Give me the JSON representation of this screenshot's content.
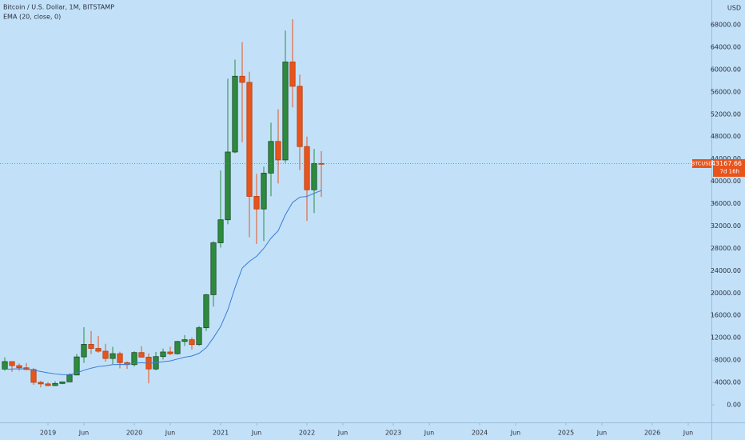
{
  "chart_data": {
    "type": "candlestick",
    "title": "Bitcoin / U.S. Dollar, 1M, BITSTAMP",
    "y_unit": "USD",
    "x": [
      "2018-07",
      "2018-08",
      "2018-09",
      "2018-10",
      "2018-11",
      "2018-12",
      "2019-01",
      "2019-02",
      "2019-03",
      "2019-04",
      "2019-05",
      "2019-06",
      "2019-07",
      "2019-08",
      "2019-09",
      "2019-10",
      "2019-11",
      "2019-12",
      "2020-01",
      "2020-02",
      "2020-03",
      "2020-04",
      "2020-05",
      "2020-06",
      "2020-07",
      "2020-08",
      "2020-09",
      "2020-10",
      "2020-11",
      "2020-12",
      "2021-01",
      "2021-02",
      "2021-03",
      "2021-04",
      "2021-05",
      "2021-06",
      "2021-07",
      "2021-08",
      "2021-09",
      "2021-10",
      "2021-11",
      "2021-12",
      "2022-01",
      "2022-02",
      "2022-03"
    ],
    "open": [
      6390,
      7730,
      7010,
      6625,
      6320,
      4020,
      3740,
      3440,
      3820,
      4100,
      5330,
      8570,
      10820,
      10090,
      9590,
      8290,
      9150,
      7550,
      7190,
      9350,
      8530,
      6410,
      8630,
      9450,
      9140,
      11340,
      11650,
      10780,
      13790,
      19700,
      28990,
      33110,
      45240,
      58800,
      57700,
      37300,
      35040,
      41460,
      47130,
      43820,
      61350,
      57000,
      46210,
      38480,
      43190
    ],
    "high": [
      8490,
      7760,
      7410,
      7460,
      6560,
      4300,
      4070,
      4200,
      4150,
      5640,
      9100,
      13880,
      13200,
      12330,
      10920,
      10370,
      9510,
      7740,
      9570,
      10500,
      9190,
      9470,
      10070,
      10390,
      11440,
      12470,
      12070,
      14100,
      19860,
      29300,
      41950,
      58350,
      61780,
      64900,
      59600,
      41330,
      42600,
      50500,
      52900,
      66970,
      69000,
      59100,
      47990,
      45800,
      45400
    ],
    "low": [
      6100,
      5880,
      6100,
      6200,
      3560,
      3120,
      3350,
      3370,
      3670,
      4100,
      5330,
      7500,
      9070,
      9320,
      7730,
      7300,
      6520,
      6430,
      6850,
      8450,
      3850,
      6150,
      8100,
      8900,
      8990,
      10530,
      9880,
      10560,
      13200,
      17570,
      28130,
      32300,
      45000,
      47000,
      30000,
      28800,
      29300,
      37330,
      39600,
      43290,
      53200,
      42000,
      32900,
      34300,
      37200
    ],
    "close": [
      7730,
      7010,
      6625,
      6320,
      4020,
      3740,
      3440,
      3820,
      4100,
      5330,
      8570,
      10820,
      10090,
      9590,
      8290,
      9150,
      7550,
      7190,
      9350,
      8530,
      6410,
      8630,
      9450,
      9140,
      11340,
      11650,
      10780,
      13790,
      19700,
      28990,
      33110,
      45240,
      58800,
      57700,
      37300,
      35040,
      41460,
      47130,
      43820,
      61350,
      57000,
      46210,
      38480,
      43190,
      43167.66
    ],
    "up_color": "#2e8b3e",
    "down_color": "#e8541c",
    "series": [
      {
        "name": "EMA (20, close, 0)",
        "color": "#3a7bd5",
        "values": [
          6350,
          6413,
          6433,
          6422,
          6193,
          5959,
          5719,
          5538,
          5401,
          5394,
          5696,
          6184,
          6556,
          6845,
          6983,
          7189,
          7223,
          7220,
          7423,
          7528,
          7422,
          7537,
          7719,
          7854,
          8186,
          8516,
          8732,
          9214,
          10212,
          12000,
          14010,
          16983,
          20964,
          24461,
          25683,
          26574,
          27991,
          29813,
          31146,
          34021,
          36209,
          37161,
          37287,
          37849,
          38355
        ]
      }
    ],
    "last_price": {
      "symbol": "BTCUSD",
      "price": 43167.66,
      "countdown": "7d 16h",
      "color": "#e8541c"
    },
    "xlim": [
      "2018-06",
      "2026-09"
    ],
    "xticks": [
      {
        "value": "2019-01",
        "label": "2019"
      },
      {
        "value": "2019-06",
        "label": "Jun"
      },
      {
        "value": "2020-01",
        "label": "2020"
      },
      {
        "value": "2020-06",
        "label": "Jun"
      },
      {
        "value": "2021-01",
        "label": "2021"
      },
      {
        "value": "2021-06",
        "label": "Jun"
      },
      {
        "value": "2022-01",
        "label": "2022"
      },
      {
        "value": "2022-06",
        "label": "Jun"
      },
      {
        "value": "2023-01",
        "label": "2023"
      },
      {
        "value": "2023-06",
        "label": "Jun"
      },
      {
        "value": "2024-01",
        "label": "2024"
      },
      {
        "value": "2024-06",
        "label": "Jun"
      },
      {
        "value": "2025-01",
        "label": "2025"
      },
      {
        "value": "2025-06",
        "label": "Jun"
      },
      {
        "value": "2026-01",
        "label": "2026"
      },
      {
        "value": "2026-06",
        "label": "Jun"
      }
    ],
    "ylim": [
      -3150,
      72440
    ],
    "yticks": [
      {
        "value": 0,
        "label": "0.00"
      },
      {
        "value": 4000,
        "label": "4000.00"
      },
      {
        "value": 8000,
        "label": "8000.00"
      },
      {
        "value": 12000,
        "label": "12000.00"
      },
      {
        "value": 16000,
        "label": "16000.00"
      },
      {
        "value": 20000,
        "label": "20000.00"
      },
      {
        "value": 24000,
        "label": "24000.00"
      },
      {
        "value": 28000,
        "label": "28000.00"
      },
      {
        "value": 32000,
        "label": "32000.00"
      },
      {
        "value": 36000,
        "label": "36000.00"
      },
      {
        "value": 40000,
        "label": "40000.00"
      },
      {
        "value": 44000,
        "label": "44000.00"
      },
      {
        "value": 48000,
        "label": "48000.00"
      },
      {
        "value": 52000,
        "label": "52000.00"
      },
      {
        "value": 56000,
        "label": "56000.00"
      },
      {
        "value": 60000,
        "label": "60000.00"
      },
      {
        "value": 64000,
        "label": "64000.00"
      },
      {
        "value": 68000,
        "label": "68000.00"
      }
    ],
    "grid": false
  }
}
